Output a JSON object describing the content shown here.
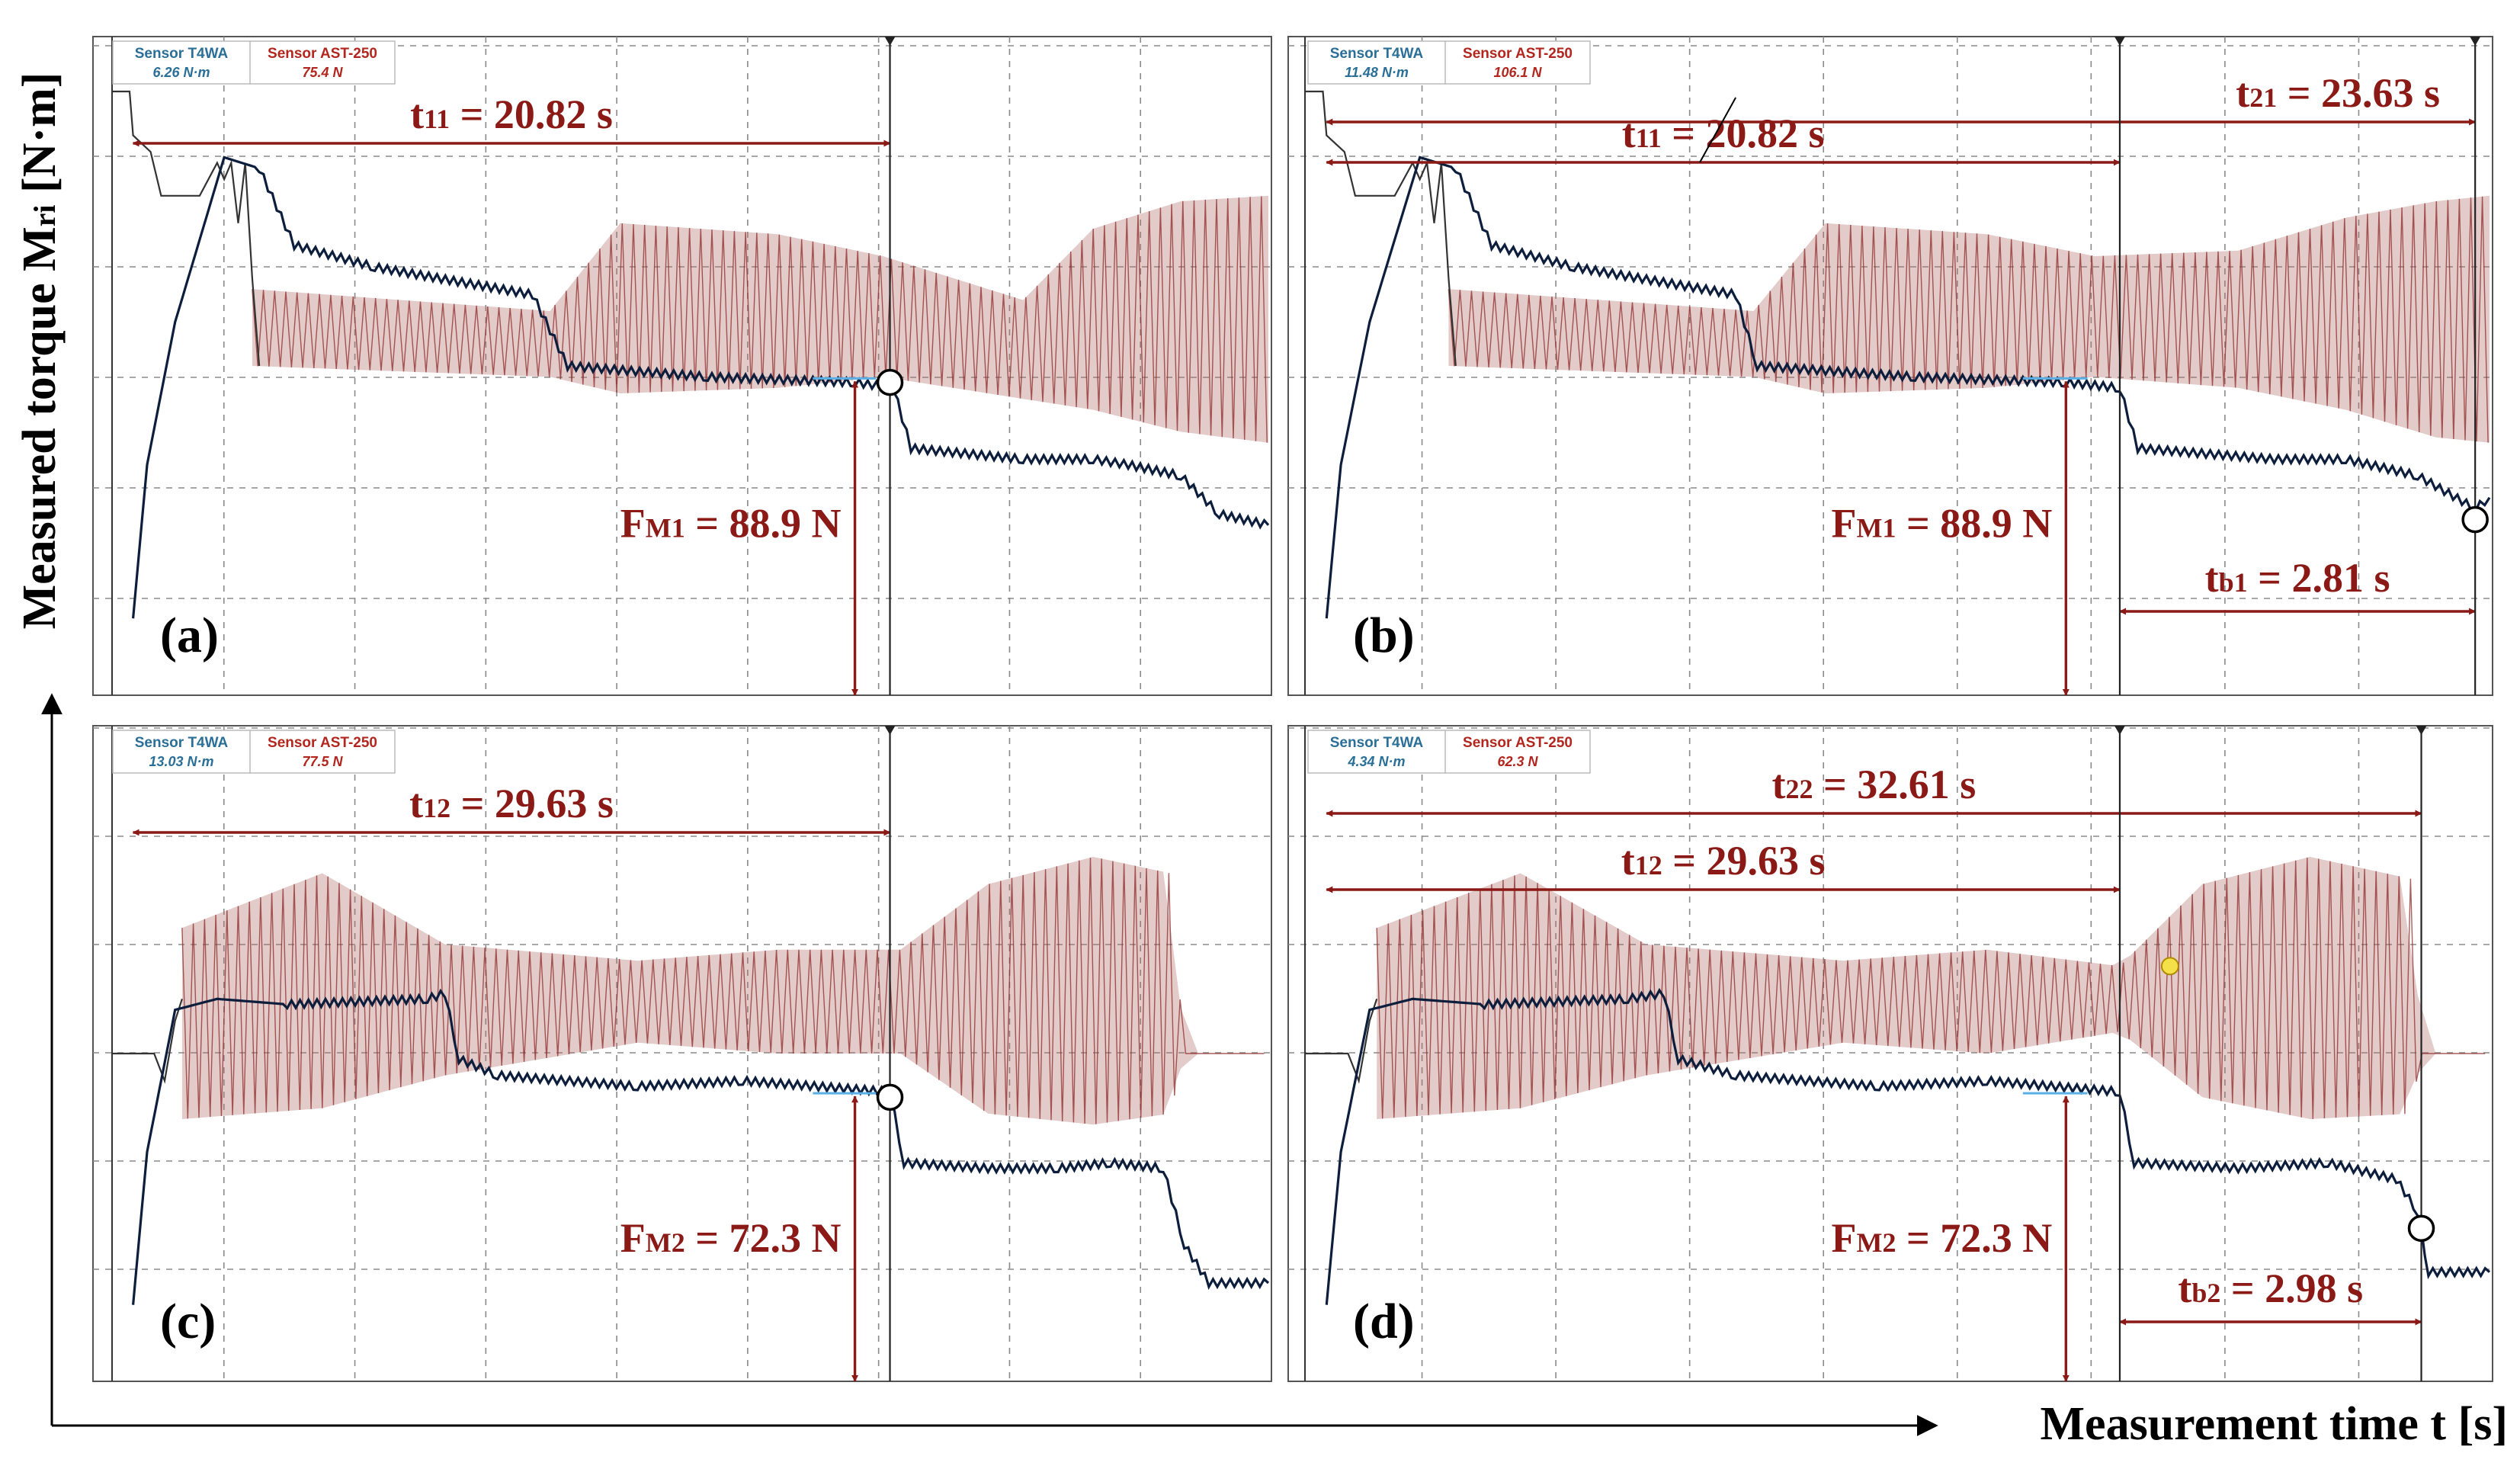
{
  "figure": {
    "y_axis_label": "Measured torque M",
    "y_axis_label_sub": "ri",
    "y_axis_unit": " [N·m]",
    "x_axis_label": "Measurement time t [s]"
  },
  "colors": {
    "torque": "#0c1e3c",
    "force": "#8c2a28",
    "force_fill": "#b06a66",
    "reference": "#333333",
    "annotation": "#8b1a16",
    "sensor1_text": "#2a6f97",
    "sensor2_text": "#b3261e",
    "grid": "#8a8a8a",
    "highlight": "#5ab0e6"
  },
  "chart_data": [
    {
      "type": "line",
      "panel": "(a)",
      "sensor1": {
        "name": "Sensor T4WA",
        "value": "6.26 N·m"
      },
      "sensor2": {
        "name": "Sensor AST-250",
        "value": "75.4 N"
      },
      "x_range": [
        0,
        33
      ],
      "y_range": [
        0,
        12
      ],
      "intervals": [
        {
          "name": "t",
          "sub": "11",
          "value": " = 20.82 s",
          "from": 0.6,
          "to": 22.2
        }
      ],
      "force": {
        "name": "F",
        "sub": "M1",
        "value": " = 88.9 N",
        "x": 21.2,
        "y_top": 5.8
      },
      "failure_markers": [
        {
          "x": 22.2,
          "y": 5.7
        }
      ],
      "torque_series": [
        [
          0.6,
          1.4
        ],
        [
          1.0,
          4.2
        ],
        [
          1.8,
          6.8
        ],
        [
          3.2,
          9.8
        ],
        [
          4.2,
          9.6
        ],
        [
          5.2,
          8.2
        ],
        [
          7.5,
          7.8
        ],
        [
          12.0,
          7.3
        ],
        [
          13.0,
          6.0
        ],
        [
          17.0,
          5.8
        ],
        [
          21.2,
          5.7
        ],
        [
          22.3,
          5.6
        ],
        [
          22.8,
          4.5
        ],
        [
          26.0,
          4.3
        ],
        [
          28.0,
          4.3
        ],
        [
          29.0,
          4.2
        ],
        [
          30.5,
          4.0
        ],
        [
          31.6,
          3.3
        ],
        [
          33.0,
          3.1
        ]
      ],
      "force_series": [
        [
          4.0,
          7.4,
          6.0
        ],
        [
          12.5,
          7.0,
          5.8
        ],
        [
          14.5,
          8.6,
          5.5
        ],
        [
          19.0,
          8.4,
          5.6
        ],
        [
          22.0,
          8.0,
          5.8
        ],
        [
          26.0,
          7.2,
          5.4
        ],
        [
          28.0,
          8.5,
          5.2
        ],
        [
          30.5,
          9.0,
          4.8
        ],
        [
          33.0,
          9.1,
          4.6
        ]
      ],
      "reference_series": [
        [
          0.0,
          11.0
        ],
        [
          0.5,
          11.0
        ],
        [
          0.6,
          10.2
        ],
        [
          1.1,
          9.9
        ],
        [
          1.4,
          9.1
        ],
        [
          2.5,
          9.1
        ],
        [
          3.0,
          9.7
        ],
        [
          3.2,
          9.4
        ],
        [
          3.4,
          9.7
        ],
        [
          3.6,
          8.6
        ],
        [
          3.8,
          9.7
        ],
        [
          4.0,
          7.6
        ],
        [
          4.2,
          6.0
        ]
      ],
      "grid": true
    },
    {
      "type": "line",
      "panel": "(b)",
      "sensor1": {
        "name": "Sensor T4WA",
        "value": "11.48 N·m"
      },
      "sensor2": {
        "name": "Sensor AST-250",
        "value": "106.1 N"
      },
      "x_range": [
        0,
        33
      ],
      "y_range": [
        0,
        12
      ],
      "intervals": [
        {
          "name": "t",
          "sub": "11",
          "value": " = 20.82 s",
          "from": 0.6,
          "to": 22.7
        },
        {
          "name": "t",
          "sub": "21",
          "value": " = 23.63 s",
          "from": 0.6,
          "to": 32.6
        },
        {
          "name": "t",
          "sub": "b1",
          "value": " = 2.81 s",
          "from": 22.7,
          "to": 32.6
        }
      ],
      "force": {
        "name": "F",
        "sub": "M1",
        "value": " = 88.9 N",
        "x": 21.2,
        "y_top": 5.8
      },
      "failure_markers": [
        {
          "x": 32.6,
          "y": 3.2
        }
      ],
      "torque_series": [
        [
          0.6,
          1.4
        ],
        [
          1.0,
          4.2
        ],
        [
          1.8,
          6.8
        ],
        [
          3.2,
          9.8
        ],
        [
          4.2,
          9.6
        ],
        [
          5.2,
          8.2
        ],
        [
          7.5,
          7.8
        ],
        [
          12.0,
          7.3
        ],
        [
          12.6,
          6.0
        ],
        [
          17.0,
          5.8
        ],
        [
          21.2,
          5.7
        ],
        [
          22.7,
          5.6
        ],
        [
          23.2,
          4.5
        ],
        [
          27.0,
          4.3
        ],
        [
          29.0,
          4.3
        ],
        [
          31.0,
          4.0
        ],
        [
          32.6,
          3.4
        ],
        [
          33.0,
          3.6
        ]
      ],
      "force_series": [
        [
          4.0,
          7.4,
          6.0
        ],
        [
          12.5,
          7.0,
          5.8
        ],
        [
          14.5,
          8.6,
          5.5
        ],
        [
          19.0,
          8.4,
          5.6
        ],
        [
          22.0,
          8.0,
          5.8
        ],
        [
          26.0,
          8.1,
          5.6
        ],
        [
          29.0,
          8.7,
          5.2
        ],
        [
          31.5,
          9.0,
          4.7
        ],
        [
          33.0,
          9.1,
          4.6
        ]
      ],
      "reference_series": [
        [
          0.0,
          11.0
        ],
        [
          0.5,
          11.0
        ],
        [
          0.6,
          10.2
        ],
        [
          1.1,
          9.9
        ],
        [
          1.4,
          9.1
        ],
        [
          2.5,
          9.1
        ],
        [
          3.0,
          9.7
        ],
        [
          3.2,
          9.4
        ],
        [
          3.4,
          9.7
        ],
        [
          3.6,
          8.6
        ],
        [
          3.8,
          9.7
        ],
        [
          4.0,
          7.6
        ],
        [
          4.2,
          6.0
        ]
      ],
      "grid": true
    },
    {
      "type": "line",
      "panel": "(c)",
      "sensor1": {
        "name": "Sensor T4WA",
        "value": "13.03 N·m"
      },
      "sensor2": {
        "name": "Sensor AST-250",
        "value": "77.5 N"
      },
      "x_range": [
        0,
        33
      ],
      "y_range": [
        0,
        12
      ],
      "intervals": [
        {
          "name": "t",
          "sub": "12",
          "value": " = 29.63 s",
          "from": 0.6,
          "to": 22.2
        }
      ],
      "force": {
        "name": "F",
        "sub": "M2",
        "value": " = 72.3 N",
        "x": 21.2,
        "y_top": 5.3
      },
      "failure_markers": [
        {
          "x": 22.2,
          "y": 5.2
        }
      ],
      "torque_series": [
        [
          0.6,
          1.4
        ],
        [
          1.0,
          4.2
        ],
        [
          1.8,
          6.8
        ],
        [
          3.0,
          7.0
        ],
        [
          5.0,
          6.9
        ],
        [
          9.0,
          7.0
        ],
        [
          9.5,
          7.1
        ],
        [
          9.9,
          5.9
        ],
        [
          11.0,
          5.6
        ],
        [
          15.0,
          5.4
        ],
        [
          18.0,
          5.5
        ],
        [
          22.2,
          5.3
        ],
        [
          22.6,
          4.0
        ],
        [
          25.0,
          3.9
        ],
        [
          27.0,
          3.9
        ],
        [
          28.5,
          4.0
        ],
        [
          30.0,
          3.9
        ],
        [
          30.6,
          2.5
        ],
        [
          31.3,
          1.8
        ],
        [
          33.0,
          1.8
        ]
      ],
      "force_series": [
        [
          2.0,
          8.3,
          4.8
        ],
        [
          6.0,
          9.3,
          5.0
        ],
        [
          9.5,
          8.0,
          5.6
        ],
        [
          15.0,
          7.7,
          6.2
        ],
        [
          19.0,
          7.9,
          6.0
        ],
        [
          22.5,
          7.9,
          6.0
        ],
        [
          25.0,
          9.1,
          4.9
        ],
        [
          28.0,
          9.6,
          4.7
        ],
        [
          30.2,
          9.3,
          4.9
        ],
        [
          30.6,
          6.0,
          6.0
        ],
        [
          33.0,
          6.0,
          6.0
        ]
      ],
      "reference_series": [
        [
          0.0,
          6.0
        ],
        [
          1.2,
          6.0
        ],
        [
          1.5,
          5.5
        ],
        [
          1.8,
          6.6
        ],
        [
          2.0,
          7.0
        ]
      ],
      "grid": true
    },
    {
      "type": "line",
      "panel": "(d)",
      "sensor1": {
        "name": "Sensor T4WA",
        "value": "4.34 N·m"
      },
      "sensor2": {
        "name": "Sensor AST-250",
        "value": "62.3 N"
      },
      "x_range": [
        0,
        33
      ],
      "y_range": [
        0,
        12
      ],
      "intervals": [
        {
          "name": "t",
          "sub": "22",
          "value": " = 32.61 s",
          "from": 0.6,
          "to": 31.1
        },
        {
          "name": "t",
          "sub": "12",
          "value": " = 29.63 s",
          "from": 0.6,
          "to": 22.7
        },
        {
          "name": "t",
          "sub": "b2",
          "value": " = 2.98 s",
          "from": 22.7,
          "to": 31.1
        }
      ],
      "force": {
        "name": "F",
        "sub": "M2",
        "value": " = 72.3 N",
        "x": 21.2,
        "y_top": 5.3
      },
      "failure_markers": [
        {
          "x": 31.1,
          "y": 2.8
        }
      ],
      "highlight_marker": {
        "x": 24.1,
        "y": 7.6
      },
      "torque_series": [
        [
          0.6,
          1.4
        ],
        [
          1.0,
          4.2
        ],
        [
          1.8,
          6.8
        ],
        [
          3.0,
          7.0
        ],
        [
          5.0,
          6.9
        ],
        [
          9.0,
          7.0
        ],
        [
          10.0,
          7.1
        ],
        [
          10.4,
          5.9
        ],
        [
          12.0,
          5.6
        ],
        [
          16.0,
          5.4
        ],
        [
          19.0,
          5.5
        ],
        [
          22.7,
          5.3
        ],
        [
          23.1,
          4.0
        ],
        [
          26.0,
          3.9
        ],
        [
          28.5,
          4.0
        ],
        [
          30.4,
          3.7
        ],
        [
          31.0,
          3.1
        ],
        [
          31.3,
          2.0
        ],
        [
          33.0,
          2.0
        ]
      ],
      "force_series": [
        [
          2.0,
          8.3,
          4.8
        ],
        [
          6.0,
          9.3,
          5.0
        ],
        [
          9.5,
          8.0,
          5.6
        ],
        [
          15.0,
          7.7,
          6.2
        ],
        [
          19.0,
          7.9,
          6.0
        ],
        [
          22.7,
          7.6,
          6.4
        ],
        [
          25.0,
          9.1,
          5.2
        ],
        [
          28.0,
          9.6,
          4.8
        ],
        [
          30.8,
          9.2,
          4.9
        ],
        [
          31.1,
          6.0,
          6.0
        ],
        [
          33.0,
          6.0,
          6.0
        ]
      ],
      "reference_series": [
        [
          0.0,
          6.0
        ],
        [
          1.2,
          6.0
        ],
        [
          1.5,
          5.5
        ],
        [
          1.8,
          6.6
        ],
        [
          2.0,
          7.0
        ]
      ],
      "grid": true
    }
  ]
}
